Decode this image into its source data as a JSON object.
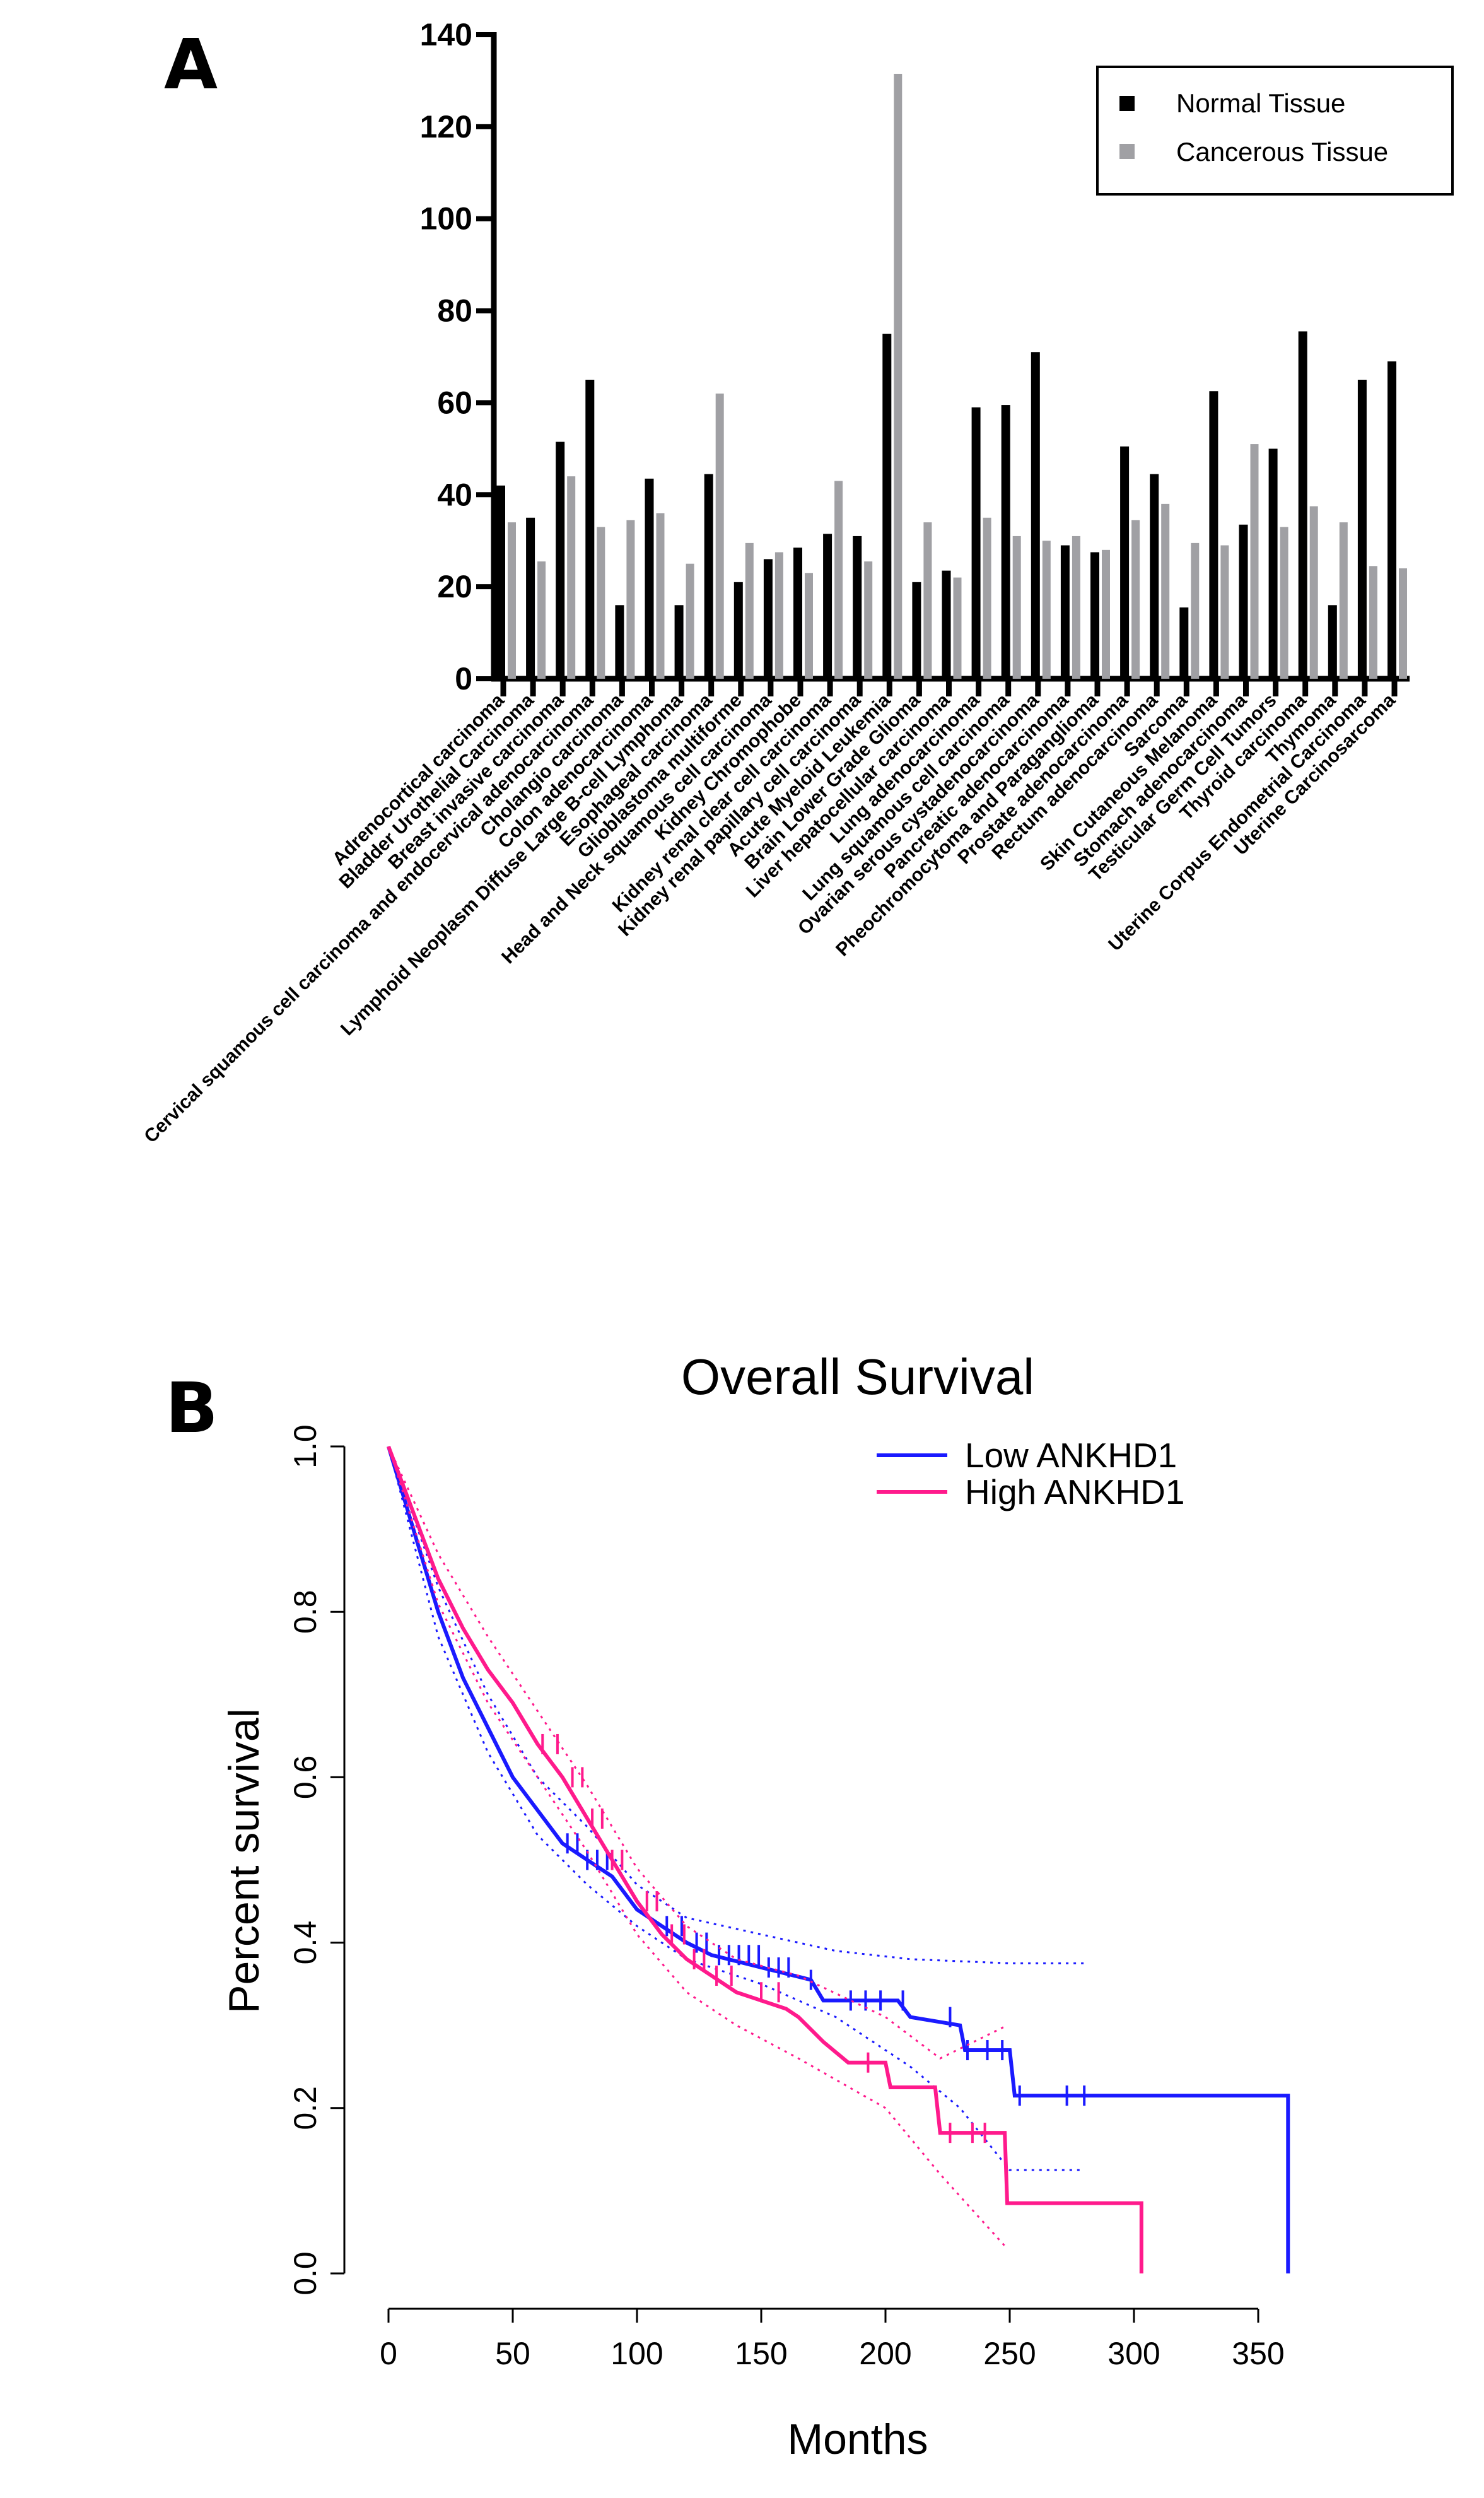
{
  "chart_data": [
    {
      "panel_label": "A",
      "type": "bar",
      "title": "",
      "xlabel": "",
      "ylabel": "",
      "ylim": [
        0,
        140
      ],
      "yticks": [
        0,
        20,
        40,
        60,
        80,
        100,
        120,
        140
      ],
      "legend_position": "top-right",
      "categories": [
        "Adrenocortical carcinoma",
        "Bladder Urothelial Carcinoma",
        "Breast invasive carcinoma",
        "Cervical squamous cell carcinoma and endocervical adenocarcinoma",
        "Cholangio carcinoma",
        "Colon adenocarcinoma",
        "Lymphoid Neoplasm Diffuse Large B-cell Lymphoma",
        "Esophageal carcinoma",
        "Glioblastoma multiforme",
        "Head and Neck squamous cell carcinoma",
        "Kidney Chromophobe",
        "Kidney renal clear cell carcinoma",
        "Kidney renal papillary cell carcinoma",
        "Acute Myeloid Leukemia",
        "Brain Lower Grade Glioma",
        "Liver hepatocellular carcinoma",
        "Lung adenocarcinoma",
        "Lung squamous cell carcinoma",
        "Ovarian serous cystadenocarcinoma",
        "Pancreatic adenocarcinoma",
        "Pheochromocytoma and Paraganglioma",
        "Prostate adenocarcinoma",
        "Rectum adenocarcinoma",
        "Sarcoma",
        "Skin Cutaneous Melanoma",
        "Stomach adenocarcinoma",
        "Testicular Germ Cell Tumors",
        "Thyroid carcinoma",
        "Thymoma",
        "Uterine Corpus Endometrial Carcinoma",
        "Uterine Carcinosarcoma"
      ],
      "series": [
        {
          "name": "Normal Tissue",
          "color": "#000000",
          "values": [
            42,
            35,
            51.5,
            65,
            16,
            43.5,
            16,
            44.5,
            21,
            26,
            28.5,
            31.5,
            31,
            75,
            21,
            23.5,
            59,
            59.5,
            71,
            29,
            27.5,
            50.5,
            44.5,
            15.5,
            62.5,
            33.5,
            50,
            75.5,
            16,
            65,
            69
          ]
        },
        {
          "name": "Cancerous Tissue",
          "color": "#a0a0a4",
          "values": [
            34,
            25.5,
            44,
            33,
            34.5,
            36,
            25,
            62,
            29.5,
            27.5,
            23,
            43,
            25.5,
            131.5,
            34,
            22,
            35,
            31,
            30,
            31,
            28,
            34.5,
            38,
            29.5,
            29,
            51,
            33,
            37.5,
            34,
            24.5,
            24
          ]
        }
      ]
    },
    {
      "panel_label": "B",
      "type": "line",
      "title": "Overall Survival",
      "xlabel": "Months",
      "ylabel": "Percent survival",
      "xlim": [
        0,
        360
      ],
      "ylim": [
        0,
        1
      ],
      "xticks": [
        "0",
        "50",
        "100",
        "150",
        "200",
        "250",
        "300",
        "350"
      ],
      "yticks": [
        "0.0",
        "0.2",
        "0.4",
        "0.6",
        "0.8",
        "1.0"
      ],
      "legend_position": "top-right",
      "series": [
        {
          "name": "Low ANKHD1",
          "color": "#1a1aff",
          "x": [
            0,
            10,
            20,
            30,
            40,
            50,
            60,
            70,
            80,
            90,
            100,
            110,
            120,
            130,
            150,
            170,
            175,
            205,
            210,
            230,
            232,
            250,
            252,
            362,
            362
          ],
          "y": [
            1.0,
            0.9,
            0.8,
            0.72,
            0.66,
            0.6,
            0.56,
            0.52,
            0.5,
            0.48,
            0.44,
            0.42,
            0.4,
            0.385,
            0.37,
            0.355,
            0.33,
            0.33,
            0.31,
            0.3,
            0.27,
            0.27,
            0.215,
            0.215,
            0.0
          ],
          "ci_upper": {
            "x": [
              0,
              20,
              40,
              60,
              80,
              100,
              120,
              150,
              180,
              210,
              250,
              280
            ],
            "y": [
              1.0,
              0.83,
              0.7,
              0.6,
              0.54,
              0.47,
              0.43,
              0.41,
              0.39,
              0.38,
              0.375,
              0.375
            ]
          },
          "ci_lower": {
            "x": [
              0,
              20,
              40,
              60,
              80,
              100,
              120,
              150,
              180,
              210,
              230,
              250,
              280
            ],
            "y": [
              1.0,
              0.77,
              0.63,
              0.53,
              0.47,
              0.42,
              0.38,
              0.35,
              0.31,
              0.25,
              0.2,
              0.125,
              0.125
            ]
          },
          "censored": [
            72,
            76,
            80,
            84,
            88,
            112,
            118,
            124,
            128,
            133,
            137,
            141,
            145,
            149,
            153,
            157,
            161,
            170,
            186,
            192,
            198,
            207,
            226,
            233,
            241,
            247,
            254,
            273,
            280
          ]
        },
        {
          "name": "High ANKHD1",
          "color": "#ff1a8c",
          "x": [
            0,
            10,
            20,
            30,
            40,
            50,
            60,
            70,
            80,
            90,
            100,
            110,
            120,
            130,
            140,
            160,
            165,
            175,
            185,
            200,
            202,
            220,
            222,
            248,
            249,
            303,
            303
          ],
          "y": [
            1.0,
            0.92,
            0.84,
            0.78,
            0.73,
            0.69,
            0.64,
            0.6,
            0.55,
            0.5,
            0.45,
            0.41,
            0.38,
            0.36,
            0.34,
            0.32,
            0.31,
            0.28,
            0.255,
            0.255,
            0.225,
            0.225,
            0.17,
            0.17,
            0.085,
            0.085,
            0.0
          ],
          "ci_upper": {
            "x": [
              0,
              20,
              40,
              60,
              80,
              100,
              120,
              140,
              165,
              200,
              222,
              249
            ],
            "y": [
              1.0,
              0.87,
              0.77,
              0.68,
              0.59,
              0.49,
              0.42,
              0.38,
              0.36,
              0.31,
              0.26,
              0.3
            ]
          },
          "ci_lower": {
            "x": [
              0,
              20,
              40,
              60,
              80,
              100,
              120,
              140,
              165,
              200,
              222,
              249
            ],
            "y": [
              1.0,
              0.81,
              0.69,
              0.6,
              0.51,
              0.41,
              0.34,
              0.3,
              0.26,
              0.2,
              0.12,
              0.03
            ]
          },
          "censored": [
            62,
            68,
            74,
            78,
            82,
            86,
            90,
            94,
            104,
            108,
            114,
            119,
            123,
            127,
            132,
            138,
            150,
            157,
            193,
            226,
            235,
            240
          ]
        }
      ]
    }
  ]
}
